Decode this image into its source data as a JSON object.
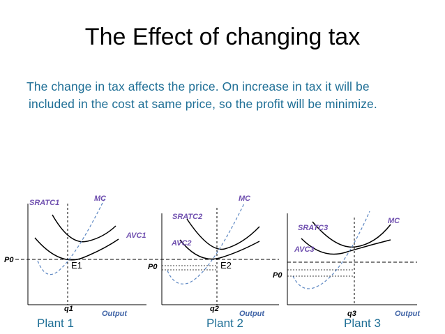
{
  "slide": {
    "title": "The Effect of changing tax",
    "paragraph_line1": "The change in tax affects the price. On increase in tax it will be",
    "paragraph_line2": "included  in the cost at same price, so the profit will be minimize."
  },
  "colors": {
    "title": "#000000",
    "text_blue": "#1f6f96",
    "label_blue": "#3f63a6",
    "label_purple": "#6f4faf",
    "curve_dashed": "#5b86c2",
    "curve_solid": "#000000"
  },
  "panels": [
    {
      "price_label": "P0",
      "quantity_label": "q1",
      "equilibrium_label": "E1",
      "sratc_label": "SRATC1",
      "avc_label": "AVC1",
      "mc_label": "MC",
      "x_axis_label": "Output",
      "plant_label": "Plant 1"
    },
    {
      "price_label": "P0",
      "quantity_label": "q2",
      "equilibrium_label": "E2",
      "sratc_label": "SRATC2",
      "avc_label": "AVC2",
      "mc_label": "MC",
      "x_axis_label": "Output",
      "plant_label": "Plant 2"
    },
    {
      "price_label": "P0",
      "quantity_label": "q3",
      "equilibrium_label": "",
      "sratc_label": "SRATC3",
      "avc_label": "AVC3",
      "mc_label": "MC",
      "x_axis_label": "Output",
      "plant_label": "Plant 3"
    }
  ]
}
